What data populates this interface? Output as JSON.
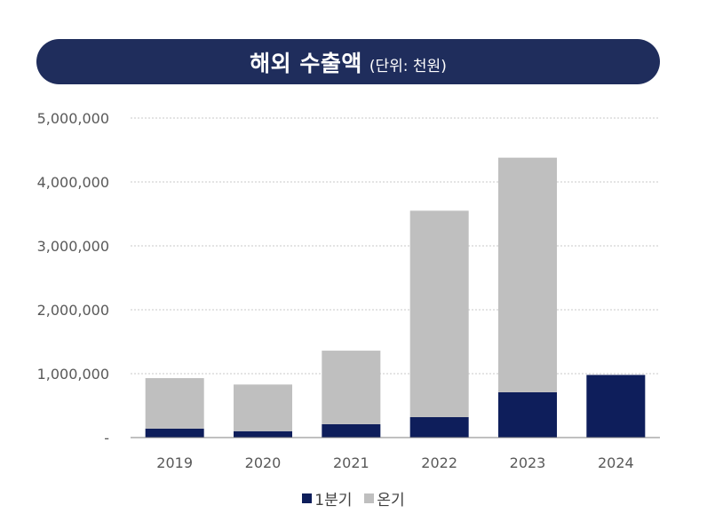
{
  "header": {
    "title": "해외 수출액",
    "unit": "(단위: 천원)"
  },
  "colors": {
    "q1": "#0e1e5b",
    "full": "#bfbfbf",
    "title_bg": "#1f2d5c"
  },
  "chart_data": {
    "type": "bar",
    "stacked": true,
    "title": "해외 수출액 (단위: 천원)",
    "categories": [
      "2019",
      "2020",
      "2021",
      "2022",
      "2023",
      "2024"
    ],
    "series": [
      {
        "name": "1분기",
        "values": [
          140000,
          100000,
          210000,
          320000,
          710000,
          980000
        ]
      },
      {
        "name": "온기",
        "values": [
          790000,
          730000,
          1150000,
          3230000,
          3670000,
          0
        ]
      }
    ],
    "y_ticks": [
      0,
      1000000,
      2000000,
      3000000,
      4000000,
      5000000
    ],
    "y_tick_labels": [
      "-",
      "1,000,000",
      "2,000,000",
      "3,000,000",
      "4,000,000",
      "5,000,000"
    ],
    "ylim": [
      0,
      5000000
    ],
    "xlabel": "",
    "ylabel": "",
    "grid": true,
    "legend_position": "bottom"
  }
}
